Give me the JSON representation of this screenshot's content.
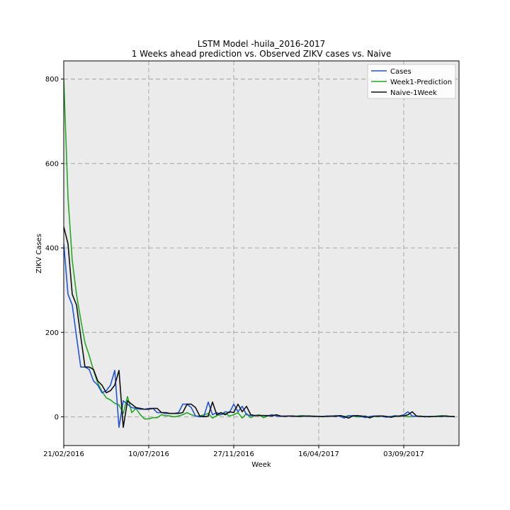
{
  "chart_data": {
    "type": "line",
    "title": "LSTM Model -huila_2016-2017",
    "subtitle": "1 Weeks ahead prediction vs. Observed ZIKV cases vs. Naive",
    "xlabel": "Week",
    "ylabel": "ZIKV Cases",
    "ylim": [
      -68,
      843
    ],
    "x_tick_labels": [
      "21/02/2016",
      "10/07/2016",
      "27/11/2016",
      "16/04/2017",
      "03/09/2017"
    ],
    "x_tick_weeks": [
      0,
      20,
      40,
      60,
      80
    ],
    "y_ticks": [
      0,
      200,
      400,
      600,
      800
    ],
    "grid": true,
    "legend": "top-right",
    "background": "#ebebeb",
    "series": [
      {
        "name": "Cases",
        "color": "#2255dd",
        "values": [
          410,
          290,
          265,
          190,
          118,
          118,
          112,
          85,
          75,
          57,
          62,
          75,
          110,
          -25,
          38,
          30,
          22,
          20,
          18,
          18,
          20,
          20,
          10,
          10,
          8,
          8,
          8,
          10,
          30,
          30,
          22,
          2,
          0,
          2,
          35,
          5,
          10,
          5,
          12,
          10,
          30,
          12,
          25,
          5,
          3,
          3,
          3,
          3,
          2,
          5,
          2,
          1,
          2,
          2,
          1,
          1,
          2,
          2,
          1,
          1,
          1,
          1,
          2,
          1,
          3,
          1,
          -3,
          2,
          3,
          2,
          1,
          -2,
          1,
          2,
          2,
          1,
          -1,
          1,
          2,
          2,
          5,
          12,
          2,
          1,
          1,
          0,
          1,
          1,
          1,
          2,
          1,
          1,
          0
        ]
      },
      {
        "name": "Week1-Prediction",
        "color": "#22aa22",
        "values": [
          800,
          520,
          370,
          290,
          230,
          175,
          145,
          110,
          80,
          60,
          45,
          40,
          32,
          28,
          8,
          48,
          10,
          20,
          5,
          -5,
          -5,
          -2,
          -2,
          5,
          3,
          2,
          0,
          2,
          5,
          10,
          5,
          2,
          2,
          5,
          8,
          -3,
          3,
          5,
          8,
          2,
          5,
          10,
          -3,
          8,
          -2,
          3,
          5,
          -2,
          2,
          5,
          2,
          1,
          2,
          2,
          1,
          2,
          3,
          2,
          1,
          2,
          1,
          0,
          2,
          1,
          3,
          2,
          0,
          3,
          2,
          0,
          0,
          2,
          -3,
          2,
          0,
          2,
          0,
          1,
          3,
          1,
          3,
          0,
          1,
          1,
          2,
          0,
          1,
          1,
          2,
          3,
          2,
          1,
          0
        ]
      },
      {
        "name": "Naive-1Week",
        "color": "#111111",
        "values": [
          450,
          410,
          290,
          265,
          190,
          118,
          118,
          112,
          85,
          75,
          57,
          62,
          75,
          110,
          -25,
          38,
          30,
          22,
          20,
          18,
          18,
          20,
          20,
          10,
          10,
          8,
          8,
          8,
          10,
          30,
          30,
          22,
          2,
          0,
          2,
          35,
          5,
          10,
          5,
          12,
          10,
          30,
          12,
          25,
          5,
          3,
          3,
          3,
          3,
          2,
          5,
          2,
          1,
          2,
          2,
          1,
          1,
          2,
          2,
          1,
          1,
          1,
          1,
          2,
          1,
          3,
          1,
          -3,
          2,
          3,
          2,
          1,
          -2,
          1,
          2,
          2,
          1,
          -1,
          1,
          2,
          2,
          5,
          12,
          2,
          1,
          1,
          0,
          1,
          1,
          1,
          2,
          1,
          1
        ]
      }
    ]
  }
}
